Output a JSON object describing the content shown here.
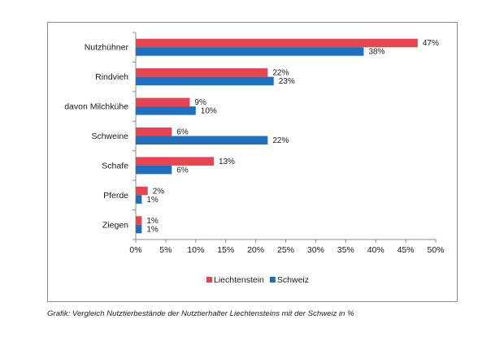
{
  "chart_data": {
    "type": "bar",
    "orientation": "horizontal",
    "categories": [
      "Nutzhühner",
      "Rindvieh",
      "davon Milchkühe",
      "Schweine",
      "Schafe",
      "Pferde",
      "Ziegen"
    ],
    "series": [
      {
        "name": "Liechtenstein",
        "color": "#e8444f",
        "values": [
          47,
          22,
          9,
          6,
          13,
          2,
          1
        ],
        "labels": [
          "47%",
          "22%",
          "9%",
          "6%",
          "13%",
          "2%",
          "1%"
        ]
      },
      {
        "name": "Schweiz",
        "color": "#1f6fbf",
        "values": [
          38,
          23,
          10,
          22,
          6,
          1,
          1
        ],
        "labels": [
          "38%",
          "23%",
          "10%",
          "22%",
          "6%",
          "1%",
          "1%"
        ]
      }
    ],
    "xlim": [
      0,
      50
    ],
    "xticks": [
      "0%",
      "5%",
      "10%",
      "15%",
      "20%",
      "25%",
      "30%",
      "35%",
      "40%",
      "45%",
      "50%"
    ],
    "grid": false,
    "legend": "bottom"
  },
  "caption": "Grafik: Vergleich Nutztierbestände der Nutztierhalter Liechtensteins mit der Schweiz in %"
}
